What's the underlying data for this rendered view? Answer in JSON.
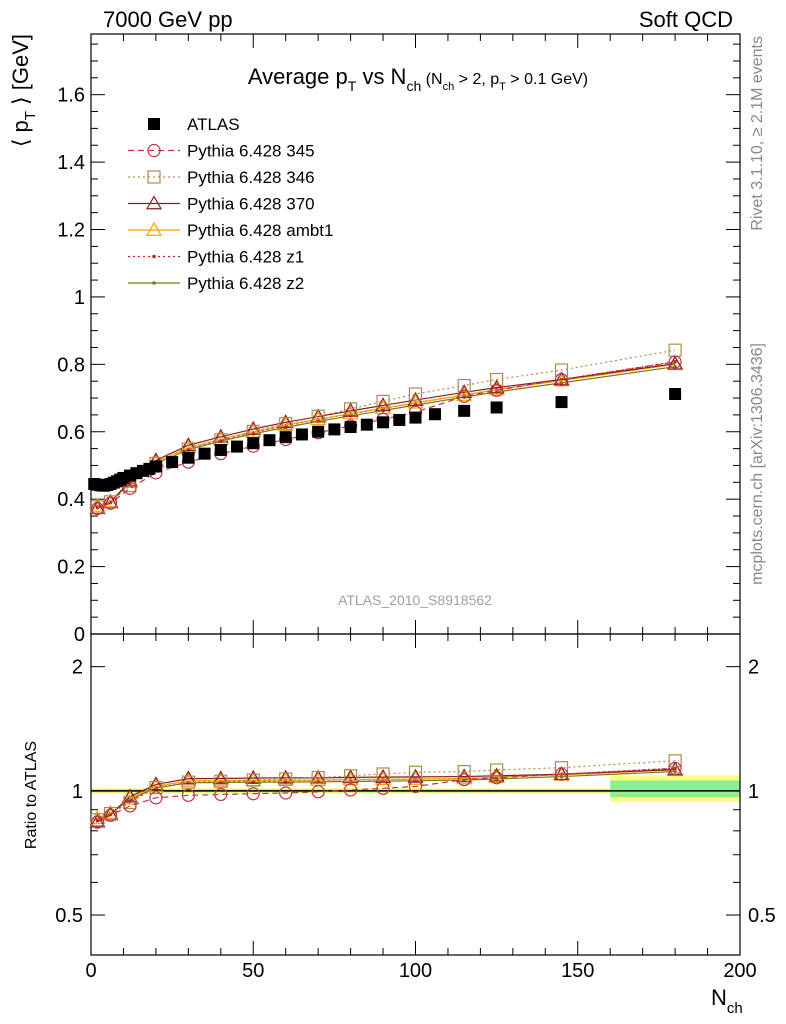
{
  "header": {
    "left": "7000 GeV pp",
    "right": "Soft QCD"
  },
  "side_labels": {
    "rivet": "Rivet 3.1.10, ≥ 2.1M events",
    "mcplots": "mcplots.cern.ch [arXiv:1306.3436]"
  },
  "main_panel": {
    "title_main": "Average p",
    "title_sub_T": "T",
    "title_vs": " vs N",
    "title_sub_ch": "ch",
    "title_cond": " (N",
    "title_cond_ch": "ch",
    "title_cond2": " > 2, p",
    "title_cond_T": "T",
    "title_cond3": " > 0.1 GeV)",
    "ylabel_pre": "⟨ p",
    "ylabel_sub": "T",
    "ylabel_post": " ⟩ [GeV]",
    "watermark": "ATLAS_2010_S8918562"
  },
  "ratio_panel": {
    "ylabel": "Ratio to ATLAS"
  },
  "xaxis": {
    "label": "N",
    "label_sub": "ch"
  },
  "colors": {
    "atlas": "#000000",
    "p345": "#c0324a",
    "p346": "#b08a4a",
    "p370": "#8b1a2a",
    "ambt1": "#f5a300",
    "z1": "#d41a1a",
    "z2": "#7a7a10",
    "band_inner": "#90ee90",
    "band_outer": "#ffff80"
  },
  "chart_data": [
    {
      "type": "scatter",
      "title": "Average pT vs Nch (Nch > 2, pT > 0.1 GeV)",
      "xlabel": "Nch",
      "ylabel": "⟨ pT ⟩ [GeV]",
      "xlim": [
        0,
        200
      ],
      "ylim": [
        0,
        1.78
      ],
      "yticks": [
        0,
        0.2,
        0.4,
        0.6,
        0.8,
        1,
        1.2,
        1.4,
        1.6
      ],
      "ytick_labels": [
        "0",
        "0.2",
        "0.4",
        "0.6",
        "0.8",
        "1",
        "1.2",
        "1.4",
        "1.6"
      ],
      "xticks": [
        0,
        50,
        100,
        150,
        200
      ],
      "xtick_labels": [
        "0",
        "50",
        "100",
        "150",
        "200"
      ],
      "legend_position": "top-left",
      "series": [
        {
          "name": "ATLAS",
          "marker": "square",
          "x": [
            1,
            2,
            3,
            4,
            5,
            6,
            7,
            8,
            9,
            10,
            12,
            14,
            16,
            18,
            20,
            25,
            30,
            35,
            40,
            45,
            50,
            55,
            60,
            65,
            70,
            75,
            80,
            85,
            90,
            95,
            100,
            106,
            115,
            125,
            145,
            180
          ],
          "y": [
            0.445,
            0.443,
            0.441,
            0.44,
            0.442,
            0.445,
            0.449,
            0.453,
            0.458,
            0.463,
            0.47,
            0.477,
            0.484,
            0.49,
            0.497,
            0.51,
            0.523,
            0.535,
            0.546,
            0.556,
            0.566,
            0.575,
            0.584,
            0.592,
            0.6,
            0.607,
            0.614,
            0.621,
            0.628,
            0.635,
            0.642,
            0.652,
            0.662,
            0.672,
            0.688,
            0.712
          ]
        },
        {
          "name": "Pythia 6.428 345",
          "marker": "circle",
          "line": "dashed",
          "x": [
            2,
            6,
            12,
            20,
            30,
            40,
            50,
            60,
            70,
            80,
            90,
            100,
            115,
            125,
            145,
            180
          ],
          "y": [
            0.372,
            0.388,
            0.432,
            0.478,
            0.51,
            0.535,
            0.557,
            0.577,
            0.597,
            0.617,
            0.637,
            0.658,
            0.705,
            0.723,
            0.755,
            0.807
          ]
        },
        {
          "name": "Pythia 6.428 346",
          "marker": "open-square",
          "line": "dotted",
          "x": [
            2,
            6,
            12,
            20,
            30,
            40,
            50,
            60,
            70,
            80,
            90,
            100,
            115,
            125,
            145,
            180
          ],
          "y": [
            0.377,
            0.392,
            0.44,
            0.506,
            0.549,
            0.576,
            0.601,
            0.624,
            0.646,
            0.668,
            0.69,
            0.712,
            0.737,
            0.755,
            0.783,
            0.842
          ]
        },
        {
          "name": "Pythia 6.428 370",
          "marker": "triangle",
          "line": "solid",
          "x": [
            2,
            6,
            12,
            20,
            30,
            40,
            50,
            60,
            70,
            80,
            90,
            100,
            115,
            125,
            145,
            180
          ],
          "y": [
            0.373,
            0.39,
            0.455,
            0.515,
            0.56,
            0.585,
            0.608,
            0.628,
            0.645,
            0.662,
            0.678,
            0.694,
            0.717,
            0.731,
            0.755,
            0.802
          ]
        },
        {
          "name": "Pythia 6.428 ambt1",
          "marker": "open-triangle",
          "line": "solid",
          "x": [
            2,
            6,
            12,
            20,
            30,
            40,
            50,
            60,
            70,
            80,
            90,
            100,
            115,
            125,
            145,
            180
          ],
          "y": [
            0.38,
            0.393,
            0.45,
            0.51,
            0.553,
            0.578,
            0.6,
            0.62,
            0.637,
            0.654,
            0.67,
            0.686,
            0.709,
            0.725,
            0.752,
            0.8
          ]
        },
        {
          "name": "Pythia 6.428 z1",
          "marker": "dot",
          "line": "dotted",
          "x": [
            2,
            6,
            12,
            20,
            30,
            40,
            50,
            60,
            70,
            80,
            90,
            100,
            115,
            125,
            145,
            180
          ],
          "y": [
            0.375,
            0.39,
            0.445,
            0.505,
            0.548,
            0.575,
            0.598,
            0.618,
            0.636,
            0.653,
            0.669,
            0.685,
            0.709,
            0.725,
            0.755,
            0.808
          ]
        },
        {
          "name": "Pythia 6.428 z2",
          "marker": "dot",
          "line": "solid",
          "x": [
            2,
            6,
            12,
            20,
            30,
            40,
            50,
            60,
            70,
            80,
            90,
            100,
            115,
            125,
            145,
            180
          ],
          "y": [
            0.378,
            0.392,
            0.448,
            0.505,
            0.547,
            0.572,
            0.594,
            0.613,
            0.631,
            0.647,
            0.663,
            0.679,
            0.703,
            0.718,
            0.745,
            0.793
          ]
        }
      ]
    },
    {
      "type": "line",
      "title": "",
      "xlabel": "Nch",
      "ylabel": "Ratio to ATLAS",
      "xlim": [
        0,
        200
      ],
      "ylim": [
        0.4,
        2.4
      ],
      "log_y": true,
      "yticks": [
        0.5,
        1,
        2
      ],
      "ytick_labels": [
        "0.5",
        "1",
        "2"
      ],
      "xticks": [
        0,
        50,
        100,
        150,
        200
      ],
      "xtick_labels": [
        "0",
        "50",
        "100",
        "150",
        "200"
      ]
    }
  ]
}
